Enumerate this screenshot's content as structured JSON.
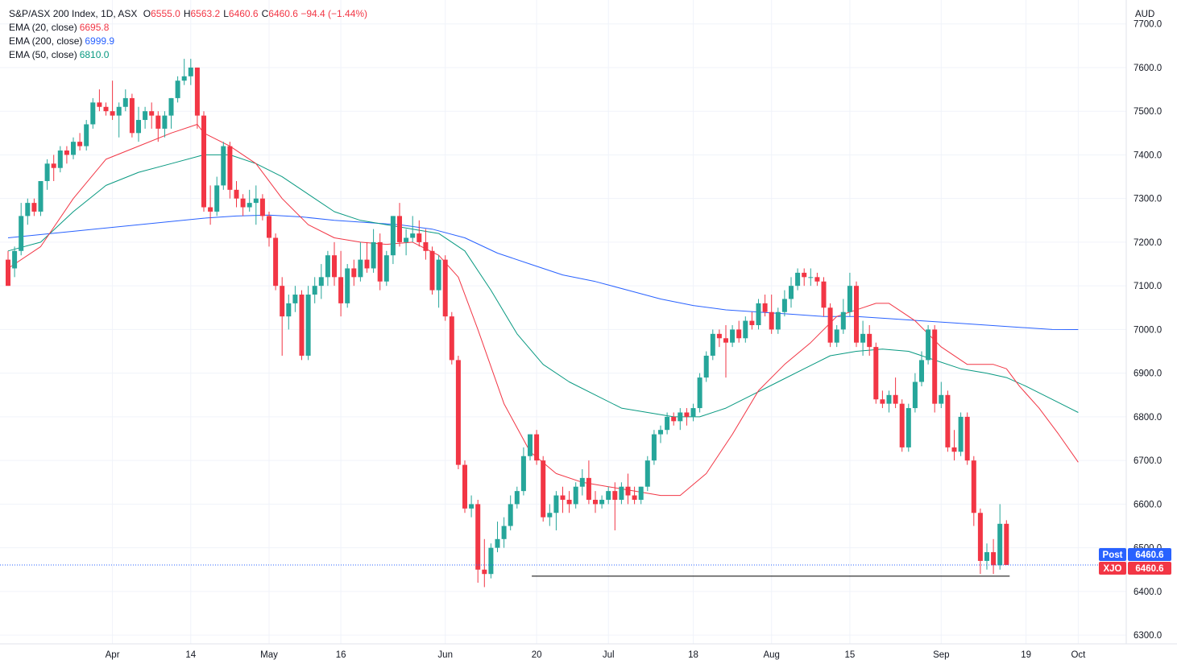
{
  "header": {
    "symbol": "S&P/ASX 200 Index, 1D, ASX",
    "ohlc": [
      {
        "k": "O",
        "v": "6555.0"
      },
      {
        "k": "H",
        "v": "6563.2"
      },
      {
        "k": "L",
        "v": "6460.6"
      },
      {
        "k": "C",
        "v": "6460.6"
      }
    ],
    "change": "−94.4 (−1.44%)",
    "currency": "AUD"
  },
  "indicators": [
    {
      "label": "EMA (20, close)",
      "value": "6695.8",
      "color": "#f23645"
    },
    {
      "label": "EMA (200, close)",
      "value": "6999.9",
      "color": "#2962ff"
    },
    {
      "label": "EMA (50, close)",
      "value": "6810.0",
      "color": "#089981"
    }
  ],
  "price_tags": [
    {
      "label": "Post",
      "value": "6460.6",
      "color": "#2962ff"
    },
    {
      "label": "XJO",
      "value": "6460.6",
      "color": "#f23645"
    }
  ],
  "colors": {
    "up": "#26a69a",
    "down": "#f23645",
    "ema20": "#f23645",
    "ema50": "#089981",
    "ema200": "#2962ff"
  },
  "chart_data": {
    "type": "candlestick",
    "y_axis": {
      "min": 6280,
      "max": 7740,
      "ticks": [
        "6300.0",
        "6400.0",
        "6500.0",
        "6600.0",
        "6700.0",
        "6800.0",
        "6900.0",
        "7000.0",
        "7100.0",
        "7200.0",
        "7300.0",
        "7400.0",
        "7500.0",
        "7600.0",
        "7700.0"
      ]
    },
    "x_ticks": [
      {
        "label": "Apr",
        "i": 16
      },
      {
        "label": "14",
        "i": 28
      },
      {
        "label": "May",
        "i": 40
      },
      {
        "label": "16",
        "i": 51
      },
      {
        "label": "Jun",
        "i": 67
      },
      {
        "label": "20",
        "i": 81
      },
      {
        "label": "Jul",
        "i": 92
      },
      {
        "label": "18",
        "i": 105
      },
      {
        "label": "Aug",
        "i": 117
      },
      {
        "label": "15",
        "i": 129
      },
      {
        "label": "Sep",
        "i": 143
      },
      {
        "label": "19",
        "i": 156
      },
      {
        "label": "Oct",
        "i": 164
      }
    ],
    "support_level": 6435,
    "support_from": 81,
    "last_close": 6460.6,
    "candles": [
      [
        7160,
        7180,
        7100,
        7100
      ],
      [
        7140,
        7190,
        7120,
        7180
      ],
      [
        7180,
        7290,
        7170,
        7260
      ],
      [
        7260,
        7300,
        7240,
        7290
      ],
      [
        7290,
        7300,
        7260,
        7270
      ],
      [
        7270,
        7340,
        7260,
        7340
      ],
      [
        7340,
        7390,
        7320,
        7380
      ],
      [
        7380,
        7400,
        7340,
        7370
      ],
      [
        7370,
        7420,
        7360,
        7410
      ],
      [
        7410,
        7420,
        7380,
        7400
      ],
      [
        7400,
        7440,
        7390,
        7430
      ],
      [
        7430,
        7450,
        7410,
        7420
      ],
      [
        7420,
        7480,
        7410,
        7470
      ],
      [
        7470,
        7530,
        7460,
        7520
      ],
      [
        7520,
        7550,
        7500,
        7510
      ],
      [
        7510,
        7520,
        7490,
        7500
      ],
      [
        7500,
        7570,
        7480,
        7490
      ],
      [
        7490,
        7520,
        7440,
        7510
      ],
      [
        7510,
        7550,
        7500,
        7530
      ],
      [
        7530,
        7540,
        7440,
        7450
      ],
      [
        7450,
        7510,
        7430,
        7480
      ],
      [
        7480,
        7510,
        7460,
        7500
      ],
      [
        7500,
        7520,
        7460,
        7490
      ],
      [
        7490,
        7500,
        7430,
        7460
      ],
      [
        7460,
        7500,
        7440,
        7490
      ],
      [
        7490,
        7530,
        7460,
        7530
      ],
      [
        7530,
        7580,
        7520,
        7570
      ],
      [
        7570,
        7620,
        7560,
        7580
      ],
      [
        7580,
        7620,
        7560,
        7600
      ],
      [
        7600,
        7600,
        7460,
        7490
      ],
      [
        7490,
        7500,
        7270,
        7280
      ],
      [
        7280,
        7330,
        7240,
        7270
      ],
      [
        7270,
        7350,
        7260,
        7330
      ],
      [
        7330,
        7430,
        7320,
        7420
      ],
      [
        7420,
        7430,
        7300,
        7320
      ],
      [
        7320,
        7340,
        7280,
        7300
      ],
      [
        7300,
        7310,
        7260,
        7280
      ],
      [
        7280,
        7320,
        7270,
        7290
      ],
      [
        7290,
        7330,
        7240,
        7300
      ],
      [
        7300,
        7310,
        7250,
        7260
      ],
      [
        7260,
        7270,
        7190,
        7210
      ],
      [
        7210,
        7220,
        7090,
        7100
      ],
      [
        7100,
        7120,
        6940,
        7030
      ],
      [
        7030,
        7080,
        7000,
        7060
      ],
      [
        7060,
        7100,
        7040,
        7080
      ],
      [
        7080,
        7090,
        6930,
        6940
      ],
      [
        6940,
        7100,
        6930,
        7080
      ],
      [
        7080,
        7120,
        7060,
        7100
      ],
      [
        7100,
        7150,
        7070,
        7120
      ],
      [
        7120,
        7180,
        7100,
        7170
      ],
      [
        7170,
        7200,
        7100,
        7120
      ],
      [
        7120,
        7180,
        7030,
        7060
      ],
      [
        7060,
        7150,
        7050,
        7140
      ],
      [
        7140,
        7160,
        7100,
        7120
      ],
      [
        7120,
        7200,
        7110,
        7160
      ],
      [
        7160,
        7200,
        7130,
        7140
      ],
      [
        7140,
        7230,
        7130,
        7200
      ],
      [
        7200,
        7220,
        7090,
        7110
      ],
      [
        7110,
        7180,
        7100,
        7170
      ],
      [
        7170,
        7260,
        7150,
        7260
      ],
      [
        7260,
        7290,
        7190,
        7200
      ],
      [
        7200,
        7230,
        7170,
        7210
      ],
      [
        7210,
        7260,
        7200,
        7220
      ],
      [
        7220,
        7250,
        7190,
        7200
      ],
      [
        7200,
        7230,
        7160,
        7180
      ],
      [
        7180,
        7190,
        7080,
        7090
      ],
      [
        7090,
        7170,
        7050,
        7160
      ],
      [
        7160,
        7170,
        7020,
        7030
      ],
      [
        7030,
        7040,
        6920,
        6930
      ],
      [
        6930,
        6940,
        6680,
        6690
      ],
      [
        6690,
        6700,
        6580,
        6590
      ],
      [
        6590,
        6620,
        6570,
        6600
      ],
      [
        6600,
        6610,
        6420,
        6450
      ],
      [
        6450,
        6520,
        6410,
        6440
      ],
      [
        6440,
        6510,
        6430,
        6500
      ],
      [
        6500,
        6560,
        6490,
        6520
      ],
      [
        6520,
        6570,
        6500,
        6550
      ],
      [
        6550,
        6620,
        6540,
        6600
      ],
      [
        6600,
        6640,
        6590,
        6630
      ],
      [
        6630,
        6730,
        6620,
        6710
      ],
      [
        6710,
        6760,
        6700,
        6760
      ],
      [
        6760,
        6770,
        6690,
        6700
      ],
      [
        6700,
        6710,
        6560,
        6570
      ],
      [
        6570,
        6600,
        6550,
        6580
      ],
      [
        6580,
        6630,
        6540,
        6620
      ],
      [
        6620,
        6640,
        6580,
        6610
      ],
      [
        6610,
        6630,
        6580,
        6600
      ],
      [
        6600,
        6650,
        6590,
        6640
      ],
      [
        6640,
        6680,
        6620,
        6660
      ],
      [
        6660,
        6700,
        6600,
        6610
      ],
      [
        6610,
        6630,
        6580,
        6600
      ],
      [
        6600,
        6620,
        6590,
        6610
      ],
      [
        6610,
        6640,
        6600,
        6630
      ],
      [
        6630,
        6650,
        6540,
        6610
      ],
      [
        6610,
        6650,
        6600,
        6640
      ],
      [
        6640,
        6670,
        6600,
        6620
      ],
      [
        6620,
        6640,
        6600,
        6610
      ],
      [
        6610,
        6640,
        6600,
        6640
      ],
      [
        6640,
        6710,
        6630,
        6700
      ],
      [
        6700,
        6770,
        6690,
        6760
      ],
      [
        6760,
        6780,
        6740,
        6770
      ],
      [
        6770,
        6810,
        6760,
        6800
      ],
      [
        6800,
        6810,
        6780,
        6790
      ],
      [
        6790,
        6820,
        6770,
        6810
      ],
      [
        6810,
        6820,
        6780,
        6800
      ],
      [
        6800,
        6830,
        6790,
        6820
      ],
      [
        6820,
        6900,
        6810,
        6890
      ],
      [
        6890,
        6950,
        6880,
        6940
      ],
      [
        6940,
        7000,
        6930,
        6990
      ],
      [
        6990,
        7000,
        6960,
        6980
      ],
      [
        6980,
        7010,
        6890,
        6970
      ],
      [
        6970,
        7010,
        6960,
        7000
      ],
      [
        7000,
        7020,
        6970,
        6980
      ],
      [
        6980,
        7030,
        6970,
        7020
      ],
      [
        7020,
        7040,
        7000,
        7010
      ],
      [
        7010,
        7070,
        7000,
        7060
      ],
      [
        7060,
        7080,
        7030,
        7040
      ],
      [
        7040,
        7080,
        6990,
        7000
      ],
      [
        7000,
        7050,
        6990,
        7040
      ],
      [
        7040,
        7090,
        7030,
        7070
      ],
      [
        7070,
        7120,
        7050,
        7100
      ],
      [
        7100,
        7140,
        7090,
        7130
      ],
      [
        7130,
        7140,
        7100,
        7120
      ],
      [
        7120,
        7140,
        7100,
        7120
      ],
      [
        7120,
        7130,
        7100,
        7110
      ],
      [
        7110,
        7120,
        7030,
        7050
      ],
      [
        7050,
        7060,
        6960,
        6970
      ],
      [
        6970,
        7010,
        6960,
        7000
      ],
      [
        7000,
        7070,
        6990,
        7040
      ],
      [
        7040,
        7130,
        7030,
        7100
      ],
      [
        7100,
        7110,
        6960,
        6970
      ],
      [
        6970,
        7020,
        6940,
        6990
      ],
      [
        6990,
        7010,
        6940,
        6960
      ],
      [
        6960,
        6970,
        6830,
        6840
      ],
      [
        6840,
        6860,
        6820,
        6830
      ],
      [
        6830,
        6860,
        6810,
        6850
      ],
      [
        6850,
        6890,
        6820,
        6830
      ],
      [
        6830,
        6840,
        6720,
        6730
      ],
      [
        6730,
        6830,
        6720,
        6820
      ],
      [
        6820,
        6900,
        6810,
        6880
      ],
      [
        6880,
        6950,
        6870,
        6930
      ],
      [
        6930,
        7010,
        6920,
        7000
      ],
      [
        7000,
        7010,
        6810,
        6830
      ],
      [
        6830,
        6880,
        6820,
        6850
      ],
      [
        6850,
        6860,
        6720,
        6730
      ],
      [
        6730,
        6770,
        6700,
        6720
      ],
      [
        6720,
        6810,
        6710,
        6800
      ],
      [
        6800,
        6810,
        6690,
        6700
      ],
      [
        6700,
        6710,
        6550,
        6580
      ],
      [
        6580,
        6590,
        6440,
        6470
      ],
      [
        6470,
        6510,
        6450,
        6490
      ],
      [
        6490,
        6520,
        6440,
        6460
      ],
      [
        6460,
        6600,
        6450,
        6555
      ],
      [
        6555,
        6563.2,
        6460.6,
        6460.6
      ]
    ],
    "ema20": [
      [
        0,
        7140
      ],
      [
        5,
        7190
      ],
      [
        10,
        7300
      ],
      [
        15,
        7390
      ],
      [
        20,
        7420
      ],
      [
        25,
        7450
      ],
      [
        29,
        7470
      ],
      [
        30,
        7450
      ],
      [
        34,
        7420
      ],
      [
        38,
        7380
      ],
      [
        42,
        7300
      ],
      [
        46,
        7240
      ],
      [
        50,
        7210
      ],
      [
        54,
        7200
      ],
      [
        58,
        7195
      ],
      [
        62,
        7200
      ],
      [
        66,
        7170
      ],
      [
        69,
        7120
      ],
      [
        72,
        7000
      ],
      [
        76,
        6830
      ],
      [
        80,
        6720
      ],
      [
        84,
        6670
      ],
      [
        88,
        6650
      ],
      [
        92,
        6640
      ],
      [
        96,
        6630
      ],
      [
        100,
        6620
      ],
      [
        103,
        6620
      ],
      [
        107,
        6670
      ],
      [
        111,
        6760
      ],
      [
        115,
        6860
      ],
      [
        119,
        6920
      ],
      [
        123,
        6970
      ],
      [
        127,
        7030
      ],
      [
        131,
        7050
      ],
      [
        133,
        7060
      ],
      [
        135,
        7060
      ],
      [
        137,
        7040
      ],
      [
        139,
        7020
      ],
      [
        143,
        6960
      ],
      [
        147,
        6920
      ],
      [
        151,
        6920
      ],
      [
        153,
        6910
      ],
      [
        155,
        6870
      ],
      [
        158,
        6820
      ],
      [
        161,
        6760
      ],
      [
        164,
        6696
      ]
    ],
    "ema50": [
      [
        0,
        7180
      ],
      [
        5,
        7200
      ],
      [
        10,
        7270
      ],
      [
        15,
        7330
      ],
      [
        20,
        7360
      ],
      [
        25,
        7380
      ],
      [
        30,
        7400
      ],
      [
        34,
        7400
      ],
      [
        38,
        7380
      ],
      [
        42,
        7350
      ],
      [
        46,
        7310
      ],
      [
        50,
        7270
      ],
      [
        54,
        7250
      ],
      [
        58,
        7240
      ],
      [
        62,
        7230
      ],
      [
        66,
        7220
      ],
      [
        70,
        7180
      ],
      [
        74,
        7090
      ],
      [
        78,
        6990
      ],
      [
        82,
        6920
      ],
      [
        86,
        6880
      ],
      [
        90,
        6850
      ],
      [
        94,
        6820
      ],
      [
        98,
        6810
      ],
      [
        102,
        6800
      ],
      [
        106,
        6800
      ],
      [
        110,
        6820
      ],
      [
        114,
        6850
      ],
      [
        118,
        6880
      ],
      [
        122,
        6910
      ],
      [
        126,
        6940
      ],
      [
        130,
        6950
      ],
      [
        134,
        6955
      ],
      [
        138,
        6950
      ],
      [
        142,
        6930
      ],
      [
        146,
        6910
      ],
      [
        150,
        6900
      ],
      [
        153,
        6890
      ],
      [
        156,
        6870
      ],
      [
        160,
        6840
      ],
      [
        164,
        6810
      ]
    ],
    "ema200": [
      [
        0,
        7210
      ],
      [
        10,
        7225
      ],
      [
        20,
        7240
      ],
      [
        30,
        7255
      ],
      [
        35,
        7260
      ],
      [
        40,
        7262
      ],
      [
        45,
        7258
      ],
      [
        50,
        7250
      ],
      [
        55,
        7245
      ],
      [
        60,
        7240
      ],
      [
        65,
        7230
      ],
      [
        70,
        7210
      ],
      [
        75,
        7175
      ],
      [
        80,
        7150
      ],
      [
        85,
        7125
      ],
      [
        90,
        7110
      ],
      [
        95,
        7090
      ],
      [
        100,
        7070
      ],
      [
        105,
        7055
      ],
      [
        110,
        7045
      ],
      [
        115,
        7040
      ],
      [
        120,
        7035
      ],
      [
        125,
        7030
      ],
      [
        130,
        7030
      ],
      [
        135,
        7025
      ],
      [
        140,
        7020
      ],
      [
        145,
        7015
      ],
      [
        150,
        7010
      ],
      [
        155,
        7005
      ],
      [
        160,
        7000
      ],
      [
        164,
        6999.9
      ]
    ]
  }
}
